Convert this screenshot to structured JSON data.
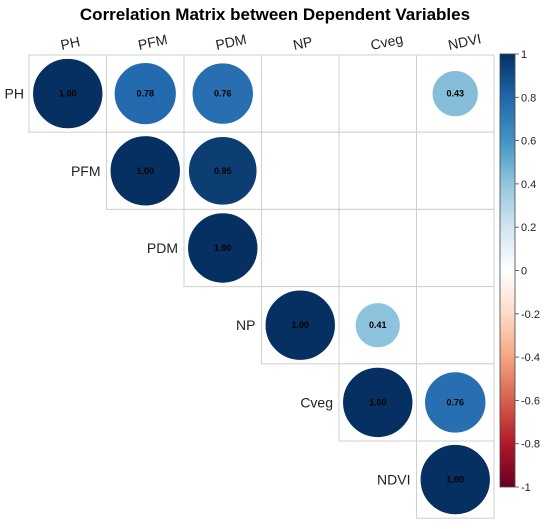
{
  "chart_data": {
    "type": "heatmap",
    "subtype": "correlation-circle-upper",
    "title": "Correlation Matrix between Dependent Variables",
    "variables": [
      "PH",
      "PFM",
      "PDM",
      "NP",
      "Cveg",
      "NDVI"
    ],
    "cells": [
      {
        "row": "PH",
        "col": "PH",
        "value": 1.0,
        "label": "1.00"
      },
      {
        "row": "PH",
        "col": "PFM",
        "value": 0.78,
        "label": "0.78"
      },
      {
        "row": "PH",
        "col": "PDM",
        "value": 0.76,
        "label": "0.76"
      },
      {
        "row": "PH",
        "col": "NDVI",
        "value": 0.43,
        "label": "0.43"
      },
      {
        "row": "PFM",
        "col": "PFM",
        "value": 1.0,
        "label": "1.00"
      },
      {
        "row": "PFM",
        "col": "PDM",
        "value": 0.95,
        "label": "0.95"
      },
      {
        "row": "PDM",
        "col": "PDM",
        "value": 1.0,
        "label": "1.00"
      },
      {
        "row": "NP",
        "col": "NP",
        "value": 1.0,
        "label": "1.00"
      },
      {
        "row": "NP",
        "col": "Cveg",
        "value": 0.41,
        "label": "0.41"
      },
      {
        "row": "Cveg",
        "col": "Cveg",
        "value": 1.0,
        "label": "1.00"
      },
      {
        "row": "Cveg",
        "col": "NDVI",
        "value": 0.76,
        "label": "0.76"
      },
      {
        "row": "NDVI",
        "col": "NDVI",
        "value": 1.0,
        "label": "1.00"
      }
    ],
    "colorbar": {
      "ticks": [
        1,
        0.8,
        0.6,
        0.4,
        0.2,
        0,
        -0.2,
        -0.4,
        -0.6,
        -0.8,
        -1
      ],
      "tick_labels": [
        "1",
        "0.8",
        "0.6",
        "0.4",
        "0.2",
        "0",
        "-0.2",
        "-0.4",
        "-0.6",
        "-0.8",
        "-1"
      ],
      "range": [
        -1,
        1
      ],
      "colors": [
        "#67001F",
        "#B2182B",
        "#D6604D",
        "#F4A582",
        "#FDDBC7",
        "#FFFFFF",
        "#D1E5F0",
        "#92C5DE",
        "#4393C3",
        "#2166AC",
        "#053061"
      ]
    },
    "grid": true
  }
}
